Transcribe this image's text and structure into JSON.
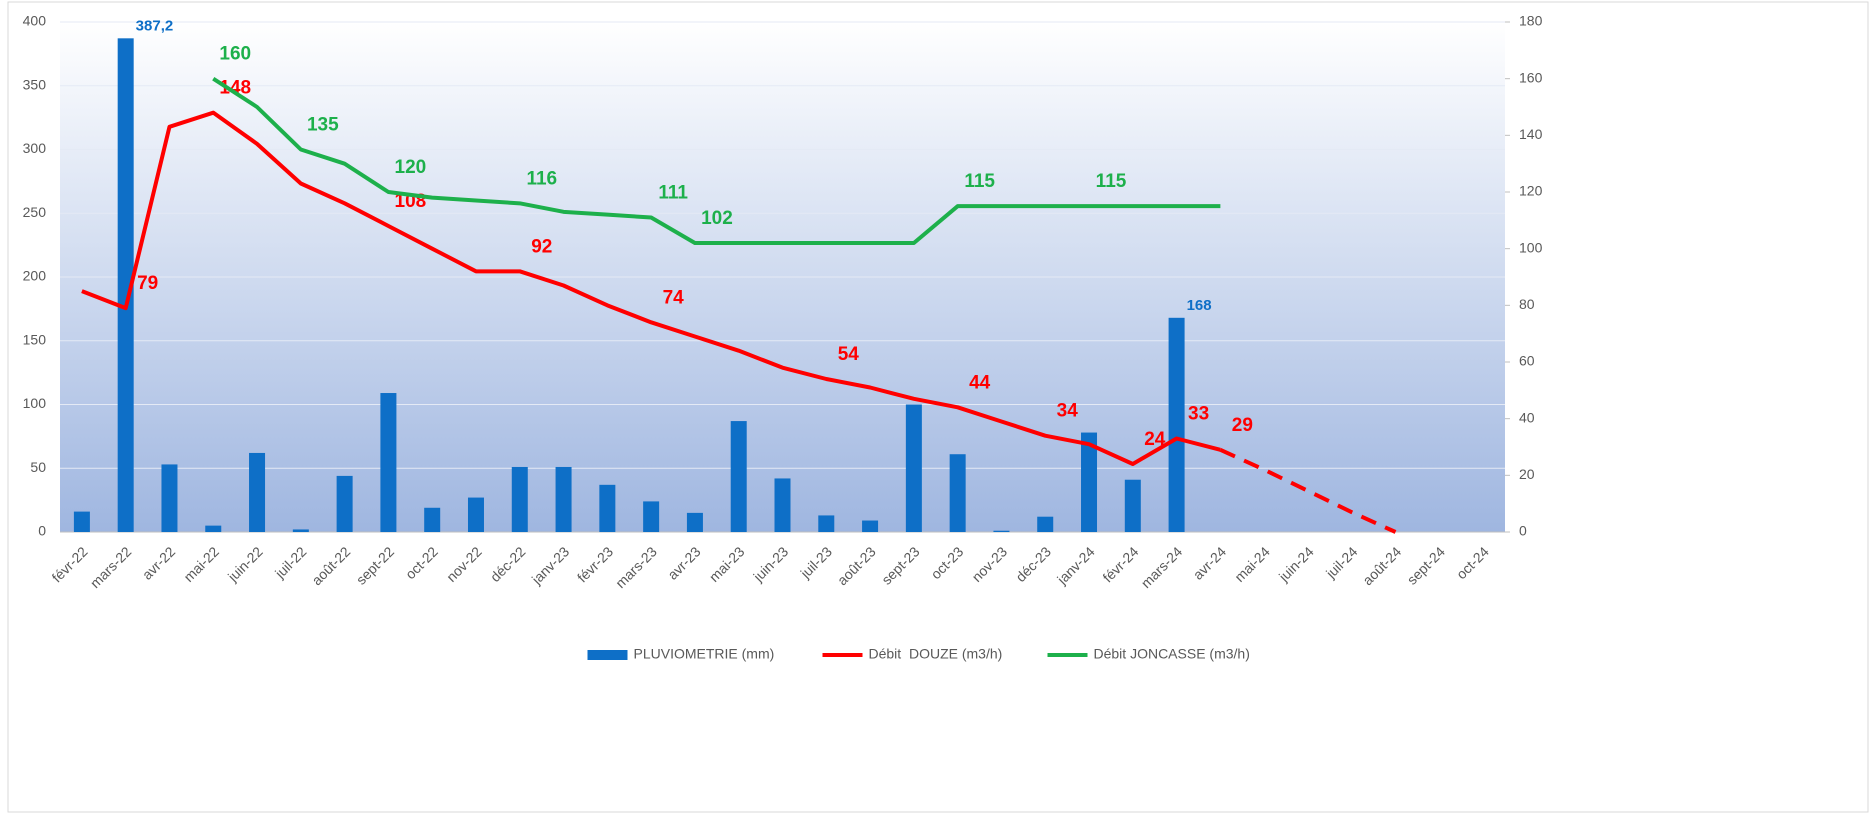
{
  "chart_data": {
    "type": "combo",
    "categories": [
      "févr-22",
      "mars-22",
      "avr-22",
      "mai-22",
      "juin-22",
      "juil-22",
      "août-22",
      "sept-22",
      "oct-22",
      "nov-22",
      "déc-22",
      "janv-23",
      "févr-23",
      "mars-23",
      "avr-23",
      "mai-23",
      "juin-23",
      "juil-23",
      "août-23",
      "sept-23",
      "oct-23",
      "nov-23",
      "déc-23",
      "janv-24",
      "févr-24",
      "mars-24",
      "avr-24",
      "mai-24",
      "juin-24",
      "juil-24",
      "août-24",
      "sept-24",
      "oct-24"
    ],
    "series": [
      {
        "name": "PLUVIOMETRIE (mm)",
        "type": "bar",
        "color": "#0e6fc7",
        "values": [
          16,
          387.2,
          53,
          5,
          62,
          2,
          44,
          109,
          19,
          27,
          51,
          51,
          37,
          24,
          15,
          87,
          42,
          13,
          9,
          100,
          61,
          1,
          12,
          78,
          41,
          168,
          null,
          null,
          null,
          null,
          null,
          null,
          null
        ],
        "value_labels": [
          null,
          "387,2",
          null,
          null,
          null,
          null,
          null,
          null,
          null,
          null,
          null,
          null,
          null,
          null,
          null,
          null,
          null,
          null,
          null,
          null,
          null,
          null,
          null,
          null,
          null,
          "168",
          null,
          null,
          null,
          null,
          null,
          null,
          null
        ]
      },
      {
        "name": "Débit  DOUZE (m3/h)",
        "type": "line",
        "axis": "y2",
        "color": "#ff0000",
        "values": [
          85,
          79,
          143,
          148,
          137,
          123,
          116,
          108,
          100,
          92,
          92,
          87,
          80,
          74,
          69,
          64,
          58,
          54,
          51,
          47,
          44,
          39,
          34,
          31,
          24,
          33,
          29,
          null,
          null,
          null,
          null,
          null,
          null
        ],
        "value_labels": [
          null,
          "79",
          null,
          "148",
          null,
          null,
          null,
          "108",
          null,
          null,
          "92",
          null,
          null,
          "74",
          null,
          null,
          null,
          "54",
          null,
          null,
          "44",
          null,
          "34",
          null,
          "24",
          "33",
          "29",
          null,
          null,
          null,
          null,
          null,
          null
        ]
      },
      {
        "name": "Débit JONCASSE (m3/h)",
        "type": "line",
        "axis": "y2",
        "color": "#1db04b",
        "values": [
          null,
          null,
          null,
          160,
          150,
          135,
          130,
          120,
          118,
          117,
          116,
          113,
          112,
          111,
          102,
          102,
          102,
          102,
          102,
          102,
          115,
          115,
          115,
          115,
          115,
          115,
          115,
          null,
          null,
          null,
          null,
          null,
          null
        ],
        "value_labels": [
          null,
          null,
          null,
          "160",
          null,
          "135",
          null,
          "120",
          null,
          null,
          "116",
          null,
          null,
          "111",
          "102",
          null,
          null,
          null,
          null,
          null,
          "115",
          null,
          null,
          "115",
          null,
          null,
          null,
          null,
          null,
          null,
          null,
          null,
          null
        ]
      }
    ],
    "projection": {
      "axis": "y2",
      "color": "#ff0000",
      "dashed": true,
      "values": [
        null,
        null,
        null,
        null,
        null,
        null,
        null,
        null,
        null,
        null,
        null,
        null,
        null,
        null,
        null,
        null,
        null,
        null,
        null,
        null,
        null,
        null,
        null,
        null,
        null,
        null,
        29,
        22,
        14.5,
        7,
        0,
        null,
        null
      ]
    },
    "ylim": [
      0,
      400
    ],
    "yticks": [
      0,
      50,
      100,
      150,
      200,
      250,
      300,
      350,
      400
    ],
    "y2lim": [
      0,
      180
    ],
    "y2ticks": [
      0,
      20,
      40,
      60,
      80,
      100,
      120,
      140,
      160,
      180
    ],
    "grid": true,
    "legend": "bottom"
  }
}
